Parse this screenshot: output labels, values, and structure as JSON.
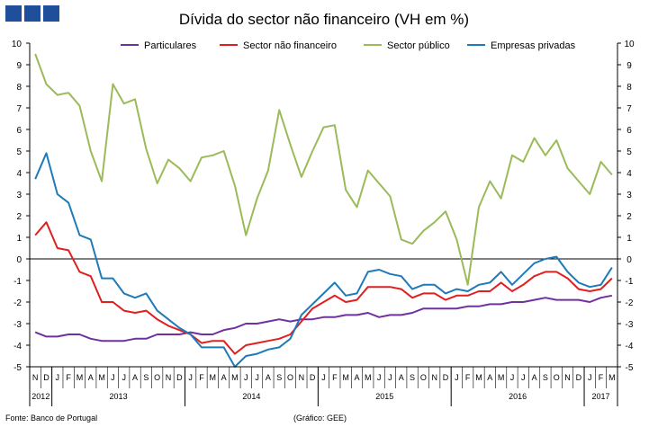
{
  "chart_data": {
    "type": "line",
    "title": "Dívida do sector não financeiro (VH em %)",
    "ylim": [
      -5,
      10
    ],
    "yticks": [
      -5,
      -4,
      -3,
      -2,
      -1,
      0,
      1,
      2,
      3,
      4,
      5,
      6,
      7,
      8,
      9,
      10
    ],
    "x": [
      "N",
      "D",
      "J",
      "F",
      "M",
      "A",
      "M",
      "J",
      "J",
      "A",
      "S",
      "O",
      "N",
      "D",
      "J",
      "F",
      "M",
      "A",
      "M",
      "J",
      "J",
      "A",
      "S",
      "O",
      "N",
      "D",
      "J",
      "F",
      "M",
      "A",
      "M",
      "J",
      "J",
      "A",
      "S",
      "O",
      "N",
      "D",
      "J",
      "F",
      "M",
      "A",
      "M",
      "J",
      "J",
      "A",
      "S",
      "O",
      "N",
      "D",
      "J",
      "F",
      "M"
    ],
    "years": [
      {
        "label": "2012",
        "start": 0,
        "end": 1
      },
      {
        "label": "2013",
        "start": 2,
        "end": 13
      },
      {
        "label": "2014",
        "start": 14,
        "end": 25
      },
      {
        "label": "2015",
        "start": 26,
        "end": 37
      },
      {
        "label": "2016",
        "start": 38,
        "end": 49
      },
      {
        "label": "2017",
        "start": 50,
        "end": 52
      }
    ],
    "series": [
      {
        "name": "Particulares",
        "color": "#7030a0",
        "values": [
          -3.4,
          -3.6,
          -3.6,
          -3.5,
          -3.5,
          -3.7,
          -3.8,
          -3.8,
          -3.8,
          -3.7,
          -3.7,
          -3.5,
          -3.5,
          -3.5,
          -3.4,
          -3.5,
          -3.5,
          -3.3,
          -3.2,
          -3.0,
          -3.0,
          -2.9,
          -2.8,
          -2.9,
          -2.8,
          -2.8,
          -2.7,
          -2.7,
          -2.6,
          -2.6,
          -2.5,
          -2.7,
          -2.6,
          -2.6,
          -2.5,
          -2.3,
          -2.3,
          -2.3,
          -2.3,
          -2.2,
          -2.2,
          -2.1,
          -2.1,
          -2.0,
          -2.0,
          -1.9,
          -1.8,
          -1.9,
          -1.9,
          -1.9,
          -2.0,
          -1.8,
          -1.7
        ]
      },
      {
        "name": "Sector não financeiro",
        "color": "#e02020",
        "values": [
          1.1,
          1.7,
          0.5,
          0.4,
          -0.6,
          -0.8,
          -2.0,
          -2.0,
          -2.4,
          -2.5,
          -2.4,
          -2.8,
          -3.1,
          -3.3,
          -3.5,
          -3.9,
          -3.8,
          -3.8,
          -4.4,
          -4.0,
          -3.9,
          -3.8,
          -3.7,
          -3.5,
          -2.9,
          -2.3,
          -2.0,
          -1.7,
          -2.0,
          -1.9,
          -1.3,
          -1.3,
          -1.3,
          -1.4,
          -1.8,
          -1.6,
          -1.6,
          -1.9,
          -1.7,
          -1.7,
          -1.5,
          -1.5,
          -1.1,
          -1.5,
          -1.2,
          -0.8,
          -0.6,
          -0.6,
          -0.9,
          -1.4,
          -1.5,
          -1.4,
          -0.9
        ]
      },
      {
        "name": "Sector público",
        "color": "#9bbb59",
        "values": [
          9.5,
          8.1,
          7.6,
          7.7,
          7.1,
          5.0,
          3.6,
          8.1,
          7.2,
          7.4,
          5.1,
          3.5,
          4.6,
          4.2,
          3.6,
          4.7,
          4.8,
          5.0,
          3.4,
          1.1,
          2.8,
          4.1,
          6.9,
          5.3,
          3.8,
          5.0,
          6.1,
          6.2,
          3.2,
          2.4,
          4.1,
          3.5,
          2.9,
          0.9,
          0.7,
          1.3,
          1.7,
          2.2,
          0.9,
          -1.2,
          2.4,
          3.6,
          2.8,
          4.8,
          4.5,
          5.6,
          4.8,
          5.5,
          4.2,
          3.6,
          3.0,
          4.5,
          3.9
        ]
      },
      {
        "name": "Empresas privadas",
        "color": "#1f7ab8",
        "values": [
          3.7,
          4.9,
          3.0,
          2.6,
          1.1,
          0.9,
          -0.9,
          -0.9,
          -1.6,
          -1.8,
          -1.6,
          -2.4,
          -2.8,
          -3.2,
          -3.5,
          -4.1,
          -4.1,
          -4.1,
          -5.0,
          -4.5,
          -4.4,
          -4.2,
          -4.1,
          -3.7,
          -2.6,
          -2.1,
          -1.6,
          -1.1,
          -1.7,
          -1.6,
          -0.6,
          -0.5,
          -0.7,
          -0.8,
          -1.4,
          -1.2,
          -1.2,
          -1.6,
          -1.4,
          -1.5,
          -1.2,
          -1.1,
          -0.6,
          -1.2,
          -0.7,
          -0.2,
          0.0,
          0.1,
          -0.6,
          -1.1,
          -1.3,
          -1.2,
          -0.4
        ]
      }
    ]
  },
  "footer": {
    "source": "Fonte: Banco de Portugal",
    "credit": "(Gráfico: GEE)"
  }
}
